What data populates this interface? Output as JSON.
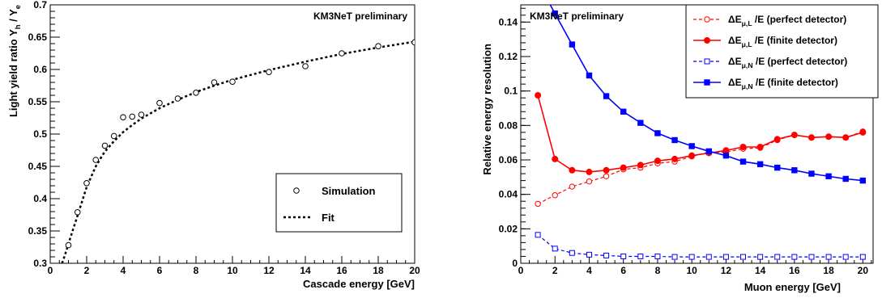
{
  "chart_data": [
    {
      "type": "scatter",
      "annotation": "KM3NeT preliminary",
      "xlabel": "Cascade energy [GeV]",
      "ylabel": {
        "main": "Light yield ratio Y",
        "sub_h": "h",
        "mid": " / Y",
        "sub_e": "e"
      },
      "xlim": [
        0,
        20
      ],
      "ylim": [
        0.3,
        0.7
      ],
      "xticks": [
        0,
        2,
        4,
        6,
        8,
        10,
        12,
        14,
        16,
        18,
        20
      ],
      "yticks": [
        0.3,
        0.35,
        0.4,
        0.45,
        0.5,
        0.55,
        0.6,
        0.65,
        0.7
      ],
      "ytick_labels": [
        "0.3",
        "0.35",
        "0.4",
        "0.45",
        "0.5",
        "0.55",
        "0.6",
        "0.65",
        "0.7"
      ],
      "legend_position": "bottom-right",
      "series": [
        {
          "name": "Simulation",
          "marker": "open-circle",
          "points": [
            [
              1,
              0.328
            ],
            [
              1.5,
              0.379
            ],
            [
              2,
              0.424
            ],
            [
              2.5,
              0.46
            ],
            [
              3,
              0.482
            ],
            [
              3.5,
              0.497
            ],
            [
              4,
              0.526
            ],
            [
              4.5,
              0.527
            ],
            [
              5,
              0.53
            ],
            [
              6,
              0.548
            ],
            [
              7,
              0.555
            ],
            [
              8,
              0.564
            ],
            [
              9,
              0.58
            ],
            [
              10,
              0.581
            ],
            [
              12,
              0.596
            ],
            [
              14,
              0.605
            ],
            [
              16,
              0.625
            ],
            [
              18,
              0.636
            ],
            [
              20,
              0.642
            ]
          ]
        },
        {
          "name": "Fit",
          "style": "dotted",
          "points": [
            [
              0.65,
              0.3
            ],
            [
              0.8,
              0.312
            ],
            [
              1,
              0.33
            ],
            [
              1.25,
              0.352
            ],
            [
              1.5,
              0.374
            ],
            [
              1.75,
              0.396
            ],
            [
              2,
              0.418
            ],
            [
              2.25,
              0.434
            ],
            [
              2.5,
              0.45
            ],
            [
              2.75,
              0.462
            ],
            [
              3,
              0.473
            ],
            [
              3.5,
              0.489
            ],
            [
              4,
              0.503
            ],
            [
              4.5,
              0.514
            ],
            [
              5,
              0.524
            ],
            [
              6,
              0.54
            ],
            [
              7,
              0.553
            ],
            [
              8,
              0.565
            ],
            [
              9,
              0.575
            ],
            [
              10,
              0.584
            ],
            [
              12,
              0.599
            ],
            [
              14,
              0.612
            ],
            [
              16,
              0.624
            ],
            [
              18,
              0.634
            ],
            [
              20,
              0.643
            ]
          ]
        }
      ]
    },
    {
      "type": "line",
      "annotation": "KM3NeT preliminary",
      "xlabel": "Muon energy [GeV]",
      "ylabel": "Relative energy resolution",
      "xlim": [
        0,
        20.6
      ],
      "ylim": [
        0,
        0.15
      ],
      "xticks": [
        0,
        2,
        4,
        6,
        8,
        10,
        12,
        14,
        16,
        18,
        20
      ],
      "yticks": [
        0,
        0.02,
        0.04,
        0.06,
        0.08,
        0.1,
        0.12,
        0.14
      ],
      "ytick_labels": [
        "0",
        "0.02",
        "0.04",
        "0.06",
        "0.08",
        "0.1",
        "0.12",
        "0.14"
      ],
      "legend_position": "top-right",
      "x": [
        1,
        2,
        3,
        4,
        5,
        6,
        7,
        8,
        9,
        10,
        11,
        12,
        13,
        14,
        15,
        16,
        17,
        18,
        19,
        20
      ],
      "series": [
        {
          "name": {
            "pre": "ΔE",
            "sub": "μ,L",
            "post": " /E (perfect detector)"
          },
          "color": "#ff0000",
          "line": "dashed",
          "marker": "open-circle",
          "values": [
            0.0345,
            0.0395,
            0.0445,
            0.0475,
            0.0505,
            0.0545,
            0.0555,
            0.058,
            0.059,
            0.062,
            0.0645,
            0.0645,
            0.0665,
            0.067,
            0.0715,
            0.0745,
            0.073,
            0.0735,
            0.073,
            0.0765
          ]
        },
        {
          "name": {
            "pre": "ΔE",
            "sub": "μ,L",
            "post": " /E (finite detector)"
          },
          "color": "#ff0000",
          "line": "solid",
          "marker": "filled-circle",
          "values": [
            0.0975,
            0.0605,
            0.054,
            0.053,
            0.054,
            0.0555,
            0.057,
            0.0595,
            0.0605,
            0.0625,
            0.064,
            0.0655,
            0.0675,
            0.0675,
            0.072,
            0.0745,
            0.073,
            0.0735,
            0.073,
            0.076
          ]
        },
        {
          "name": {
            "pre": "ΔE",
            "sub": "μ,N",
            "post": " /E (perfect detector)"
          },
          "color": "#0000ff",
          "line": "dashed",
          "marker": "open-square",
          "values": [
            0.0165,
            0.0085,
            0.006,
            0.005,
            0.0045,
            0.004,
            0.004,
            0.004,
            0.0037,
            0.0037,
            0.0037,
            0.0037,
            0.0037,
            0.0037,
            0.0037,
            0.0037,
            0.0037,
            0.0037,
            0.0037,
            0.0037
          ]
        },
        {
          "name": {
            "pre": "ΔE",
            "sub": "μ,N",
            "post": " /E (finite detector)"
          },
          "color": "#0000ff",
          "line": "solid",
          "marker": "filled-square",
          "values": [
            0.163,
            0.145,
            0.127,
            0.109,
            0.097,
            0.088,
            0.0815,
            0.0755,
            0.0715,
            0.068,
            0.065,
            0.0625,
            0.059,
            0.0575,
            0.0555,
            0.054,
            0.052,
            0.0505,
            0.049,
            0.048
          ]
        }
      ]
    }
  ]
}
